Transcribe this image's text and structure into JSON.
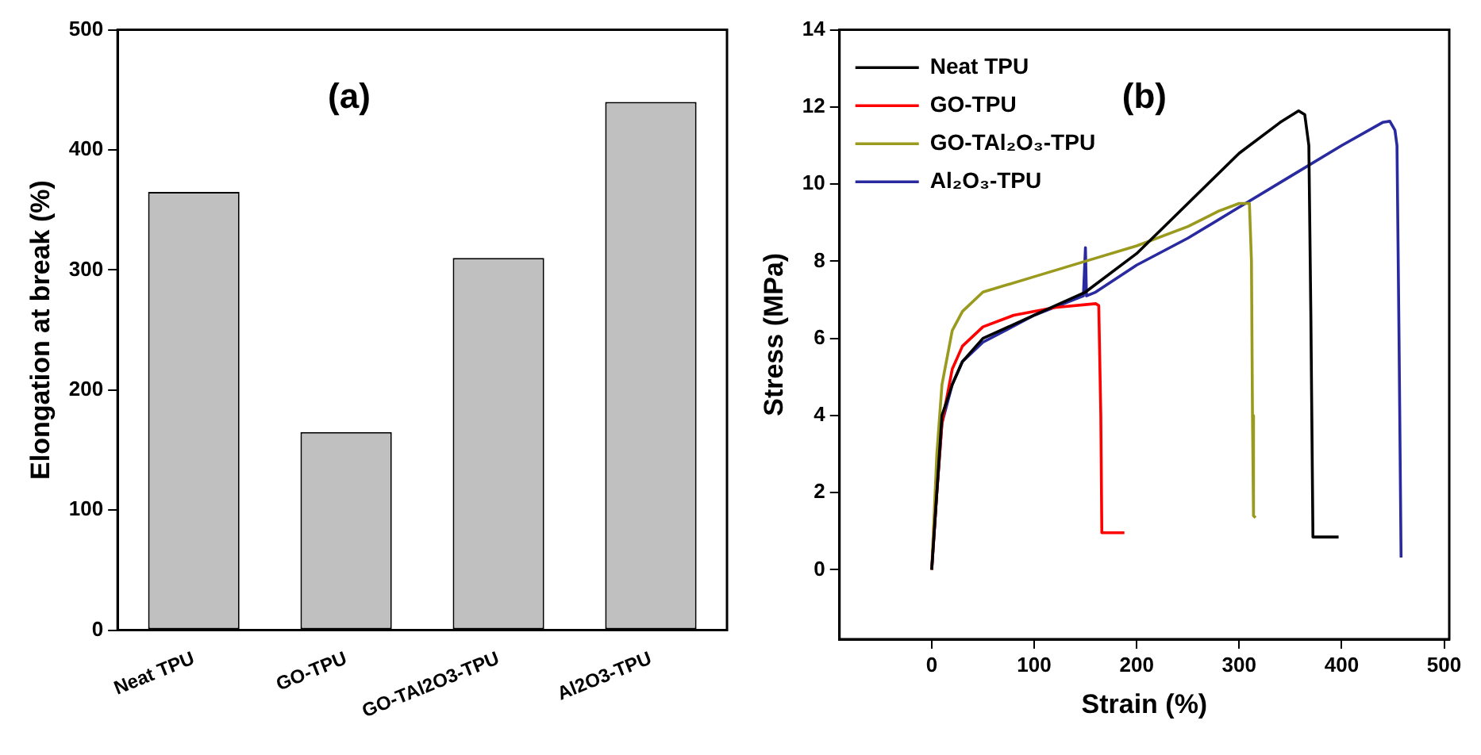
{
  "chart_data": [
    {
      "type": "bar",
      "title": "(a)",
      "ylabel": "Elongation at break (%)",
      "categories": [
        "Neat TPU",
        "GO-TPU",
        "GO-TAl2O3-TPU",
        "Al2O3-TPU"
      ],
      "values": [
        365,
        165,
        310,
        440
      ],
      "color": "#c0c0c0",
      "ylim": [
        0,
        500
      ],
      "yticks": [
        0,
        100,
        200,
        300,
        400,
        500
      ],
      "grid": false,
      "legend": false
    },
    {
      "type": "line",
      "title": "(b)",
      "xlabel": "Strain (%)",
      "ylabel": "Stress (MPa)",
      "xlim": [
        -90,
        505
      ],
      "xticks": [
        0,
        100,
        200,
        300,
        400,
        500
      ],
      "ylim": [
        -1.8,
        14
      ],
      "yticks": [
        0,
        2,
        4,
        6,
        8,
        10,
        12,
        14
      ],
      "grid": false,
      "legend": "top left",
      "marker": "none",
      "series": [
        {
          "name": "Neat TPU",
          "color": "#000000",
          "x": [
            0,
            5,
            10,
            20,
            30,
            50,
            100,
            150,
            200,
            250,
            300,
            340,
            358,
            364,
            368,
            370,
            372,
            397
          ],
          "values": [
            0,
            2,
            4,
            4.8,
            5.4,
            6,
            6.6,
            7.2,
            8.2,
            9.5,
            10.8,
            11.6,
            11.9,
            11.8,
            11,
            6.5,
            0.85,
            0.85
          ]
        },
        {
          "name": "GO-TPU",
          "color": "#ff0000",
          "x": [
            0,
            5,
            10,
            20,
            30,
            50,
            80,
            120,
            160,
            163,
            165,
            166,
            188
          ],
          "values": [
            0,
            2,
            3.8,
            5.2,
            5.8,
            6.3,
            6.6,
            6.8,
            6.9,
            6.85,
            4,
            0.96,
            0.96
          ]
        },
        {
          "name": "GO-TAl₂O₃-TPU",
          "color": "#9a9a1e",
          "x": [
            0,
            5,
            10,
            20,
            30,
            50,
            100,
            150,
            200,
            250,
            280,
            300,
            310,
            312,
            313,
            314,
            316
          ],
          "values": [
            0,
            3,
            4.8,
            6.2,
            6.7,
            7.2,
            7.6,
            8,
            8.4,
            8.9,
            9.3,
            9.5,
            9.5,
            8,
            4,
            1.4,
            1.35
          ]
        },
        {
          "name": "Al₂O₃-TPU",
          "color": "#2a2aa0",
          "x": [
            0,
            5,
            10,
            20,
            30,
            50,
            100,
            148,
            150,
            151,
            160,
            200,
            250,
            300,
            350,
            400,
            440,
            447,
            452,
            454,
            456,
            458
          ],
          "values": [
            0,
            2,
            3.8,
            4.8,
            5.4,
            5.9,
            6.6,
            7.1,
            8.35,
            7.1,
            7.2,
            7.9,
            8.6,
            9.4,
            10.2,
            11,
            11.6,
            11.63,
            11.4,
            11,
            6,
            0.32
          ]
        }
      ]
    }
  ]
}
